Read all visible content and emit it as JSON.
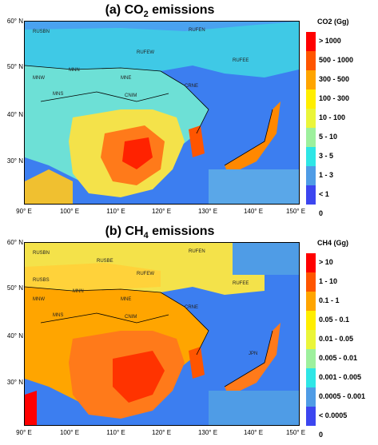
{
  "panels": [
    {
      "title_prefix": "(a) CO",
      "title_sub": "2",
      "title_suffix": " emissions",
      "legend_title": "CO2 (Gg)",
      "legend": [
        {
          "label": "> 1000",
          "color": "#ff0000"
        },
        {
          "label": "500 - 1000",
          "color": "#ff5500"
        },
        {
          "label": "300 - 500",
          "color": "#ffa500"
        },
        {
          "label": "100 - 300",
          "color": "#ffee00"
        },
        {
          "label": "10 - 100",
          "color": "#eaf53a"
        },
        {
          "label": "5 - 10",
          "color": "#9df09d"
        },
        {
          "label": "3 - 5",
          "color": "#2ee6e6"
        },
        {
          "label": "1 - 3",
          "color": "#4f9ce6"
        },
        {
          "label": "< 1",
          "color": "#3c46f0"
        },
        {
          "label": "0",
          "color": "#ffffff"
        }
      ],
      "regions": [
        "RUSBN",
        "RUFEN",
        "RUFEW",
        "RUFEE",
        "MNW",
        "MNN",
        "MNE",
        "MNS",
        "CNIM",
        "CRNE"
      ]
    },
    {
      "title_prefix": "(b) CH",
      "title_sub": "4",
      "title_suffix": " emissions",
      "legend_title": "CH4 (Gg)",
      "legend": [
        {
          "label": "> 10",
          "color": "#ff0000"
        },
        {
          "label": "1 - 10",
          "color": "#ff5500"
        },
        {
          "label": "0.1 - 1",
          "color": "#ffa500"
        },
        {
          "label": "0.05 - 0.1",
          "color": "#ffee00"
        },
        {
          "label": "0.01 - 0.05",
          "color": "#eaf53a"
        },
        {
          "label": "0.005 - 0.01",
          "color": "#9df09d"
        },
        {
          "label": "0.001 - 0.005",
          "color": "#2ee6e6"
        },
        {
          "label": "0.0005 - 0.001",
          "color": "#4f9ce6"
        },
        {
          "label": "< 0.0005",
          "color": "#3c46f0"
        },
        {
          "label": "0",
          "color": "#ffffff"
        }
      ],
      "regions": [
        "RUSBN",
        "RUSBE",
        "RUFEN",
        "RUFEW",
        "RUSBS",
        "RUFEE",
        "MNW",
        "MNN",
        "MNE",
        "MNS",
        "CNIM",
        "CRNE",
        "JPN"
      ]
    }
  ],
  "axes": {
    "lat_labels": [
      "60° N",
      "50° N",
      "40° N",
      "30° N"
    ],
    "lon_labels": [
      "90° E",
      "100° E",
      "110° E",
      "120° E",
      "130° E",
      "140° E",
      "150° E"
    ]
  }
}
